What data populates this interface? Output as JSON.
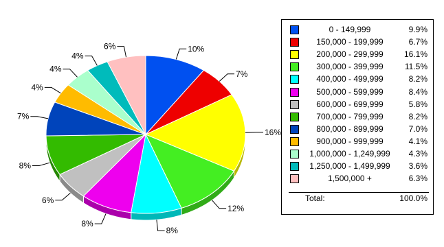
{
  "chart_data": {
    "type": "pie",
    "title": "",
    "slices": [
      {
        "range": "0  - 149,999",
        "legend_value": "9.9%",
        "label": "10%",
        "value": 9.9,
        "color": "#0050f0"
      },
      {
        "range": "150,000 - 199,999",
        "legend_value": "6.7%",
        "label": "7%",
        "value": 6.7,
        "color": "#ee0000"
      },
      {
        "range": "200,000 - 299,999",
        "legend_value": "16.1%",
        "label": "16%",
        "value": 16.1,
        "color": "#ffff00"
      },
      {
        "range": "300,000 - 399,999",
        "legend_value": "11.5%",
        "label": "12%",
        "value": 11.5,
        "color": "#44ee22"
      },
      {
        "range": "400,000 - 499,999",
        "legend_value": "8.2%",
        "label": "8%",
        "value": 8.2,
        "color": "#00ffff"
      },
      {
        "range": "500,000 - 599,999",
        "legend_value": "8.4%",
        "label": "8%",
        "value": 8.4,
        "color": "#ee00ee"
      },
      {
        "range": "600,000 - 699,999",
        "legend_value": "5.8%",
        "label": "6%",
        "value": 5.8,
        "color": "#c0c0c0"
      },
      {
        "range": "700,000 - 799,999",
        "legend_value": "8.2%",
        "label": "8%",
        "value": 8.2,
        "color": "#33bb00"
      },
      {
        "range": "800,000 - 899,999",
        "legend_value": "7.0%",
        "label": "7%",
        "value": 7.0,
        "color": "#0044bb"
      },
      {
        "range": "900,000 - 999,999",
        "legend_value": "4.1%",
        "label": "4%",
        "value": 4.1,
        "color": "#ffbb00"
      },
      {
        "range": "1,000,000 - 1,249,999",
        "legend_value": "4.3%",
        "label": "4%",
        "value": 4.3,
        "color": "#aaffcc"
      },
      {
        "range": "1,250,000 - 1,499,999",
        "legend_value": "3.6%",
        "label": "4%",
        "value": 3.6,
        "color": "#00bbbb"
      },
      {
        "range": "1,500,000   +",
        "legend_value": "6.3%",
        "label": "6%",
        "value": 6.3,
        "color": "#ffc0c0"
      }
    ],
    "legend": {
      "placement": "right",
      "total_label": "Total:",
      "total_value": "100.0%"
    }
  }
}
